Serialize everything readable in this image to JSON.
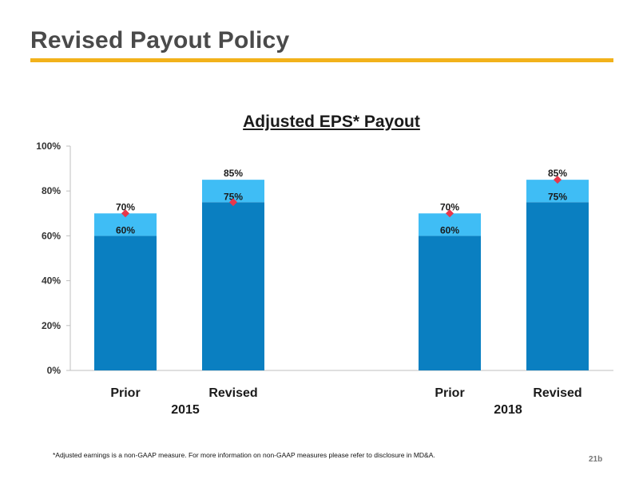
{
  "page": {
    "title": "Revised Payout Policy",
    "footnote": "*Adjusted earnings is  a non-GAAP measure. For more information on non-GAAP measures please refer to disclosure in MD&A.",
    "slide_number": "21b"
  },
  "colors": {
    "accent_rule": "#f2b21b",
    "bar_base": "#0a7fc1",
    "bar_top": "#3fbdf5",
    "marker": "#e8374b"
  },
  "chart_data": {
    "type": "bar",
    "stacked": true,
    "title": "Adjusted EPS* Payout",
    "ylim": [
      0,
      100
    ],
    "y_ticks": [
      "0%",
      "20%",
      "40%",
      "60%",
      "80%",
      "100%"
    ],
    "y_tick_values": [
      0,
      20,
      40,
      60,
      80,
      100
    ],
    "grid": false,
    "legend": "none",
    "groups": [
      "2015",
      "2018"
    ],
    "categories": [
      "Prior",
      "Revised",
      "Prior",
      "Revised"
    ],
    "category_group": [
      0,
      0,
      1,
      1
    ],
    "series": [
      {
        "values": [
          60,
          75,
          60,
          75
        ],
        "labels": [
          "60%",
          "75%",
          "60%",
          "75%"
        ]
      },
      {
        "values": [
          10,
          10,
          10,
          10
        ]
      }
    ],
    "totals": [
      70,
      85,
      70,
      85
    ],
    "total_labels": [
      "70%",
      "85%",
      "70%",
      "85%"
    ],
    "markers": [
      70,
      75,
      70,
      85
    ]
  }
}
